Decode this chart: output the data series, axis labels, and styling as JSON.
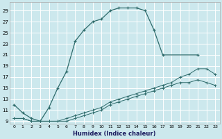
{
  "xlabel": "Humidex (Indice chaleur)",
  "bg_color": "#cce8ed",
  "grid_color": "#ffffff",
  "line_color": "#2e6b6b",
  "ylim": [
    8.5,
    30.5
  ],
  "xlim": [
    -0.5,
    23.5
  ],
  "yticks": [
    9,
    11,
    13,
    15,
    17,
    19,
    21,
    23,
    25,
    27,
    29
  ],
  "xticks": [
    0,
    1,
    2,
    3,
    4,
    5,
    6,
    7,
    8,
    9,
    10,
    11,
    12,
    13,
    14,
    15,
    16,
    17,
    18,
    19,
    20,
    21,
    22,
    23
  ],
  "series1_x": [
    0,
    1,
    2,
    3,
    4,
    5,
    6,
    7,
    8,
    9,
    10,
    11,
    12,
    13,
    14,
    15,
    16,
    17,
    21
  ],
  "series1_y": [
    12,
    10.5,
    9.5,
    9,
    11.5,
    15,
    18,
    23.5,
    25.5,
    27,
    27.5,
    29,
    29.5,
    29.5,
    29.5,
    29,
    25.5,
    21,
    21
  ],
  "series2_x": [
    0,
    1,
    2,
    3,
    4,
    5,
    6,
    7,
    8,
    9,
    10,
    11,
    12,
    13,
    14,
    15,
    16,
    17,
    18,
    19,
    20,
    21,
    22,
    23
  ],
  "series2_y": [
    9.5,
    9.5,
    9,
    9,
    9,
    9,
    9.5,
    10,
    10.5,
    11,
    11.5,
    12.5,
    13,
    13.5,
    14,
    14.5,
    15,
    15.5,
    16,
    17,
    17.5,
    18.5,
    18.5,
    17.5
  ],
  "series3_x": [
    0,
    1,
    2,
    3,
    4,
    5,
    6,
    7,
    8,
    9,
    10,
    11,
    12,
    13,
    14,
    15,
    16,
    17,
    18,
    19,
    20,
    21,
    22,
    23
  ],
  "series3_y": [
    9.5,
    9.5,
    9,
    9,
    9,
    9,
    9,
    9.5,
    10,
    10.5,
    11,
    12,
    12.5,
    13,
    13.5,
    14,
    14.5,
    15,
    15.5,
    16,
    16,
    16.5,
    16,
    15.5
  ]
}
